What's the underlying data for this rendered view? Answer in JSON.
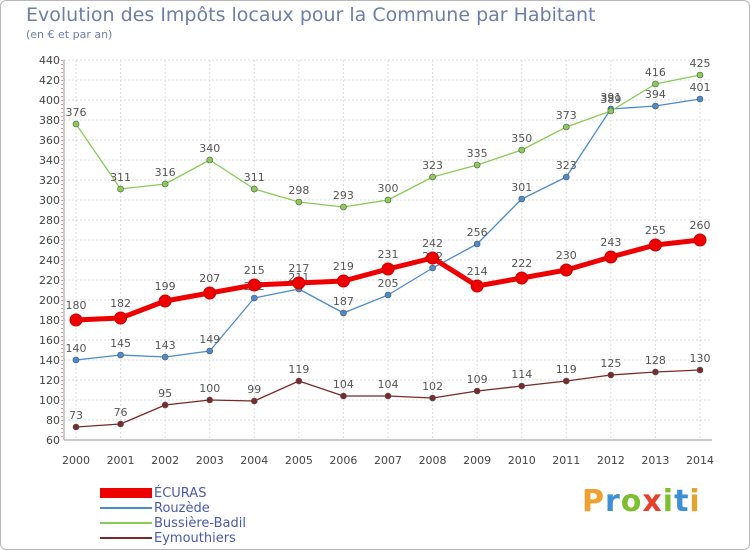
{
  "header": {
    "title": "Evolution des Impôts locaux pour la Commune par Habitant",
    "subtitle": "(en € et par an)"
  },
  "brand": {
    "letters": [
      "P",
      "r",
      "o",
      "x",
      "i",
      "t",
      "i"
    ],
    "colors": [
      "#f0a030",
      "#3d8fd6",
      "#7cbf2f",
      "#e8402a",
      "#7cbf2f",
      "#3d8fd6",
      "#e3a32c"
    ]
  },
  "chart_data": {
    "type": "line",
    "x": [
      2000,
      2001,
      2002,
      2003,
      2004,
      2005,
      2006,
      2007,
      2008,
      2009,
      2010,
      2011,
      2012,
      2013,
      2014
    ],
    "ylim": [
      60,
      440
    ],
    "yticks": [
      60,
      80,
      100,
      120,
      140,
      160,
      180,
      200,
      220,
      240,
      260,
      280,
      300,
      320,
      340,
      360,
      380,
      400,
      420,
      440
    ],
    "grid": true,
    "legend_position": "bottom-left",
    "series": [
      {
        "name": "Eymouthiers",
        "color": "#7a2a2a",
        "values": [
          73,
          76,
          95,
          100,
          99,
          119,
          104,
          104,
          102,
          109,
          114,
          119,
          125,
          128,
          130
        ]
      },
      {
        "name": "Rouzède",
        "color": "#4a8ccc",
        "values": [
          140,
          145,
          143,
          149,
          202,
          211,
          187,
          205,
          232,
          256,
          301,
          323,
          391,
          394,
          401
        ]
      },
      {
        "name": "Bussière-Badil",
        "color": "#88cc55",
        "values": [
          376,
          311,
          316,
          340,
          311,
          298,
          293,
          300,
          323,
          335,
          350,
          373,
          389,
          416,
          425
        ]
      },
      {
        "name": "ÉCURAS",
        "color": "#ee0000",
        "values": [
          180,
          182,
          199,
          207,
          215,
          217,
          219,
          231,
          242,
          214,
          222,
          230,
          243,
          255,
          260
        ]
      }
    ]
  }
}
